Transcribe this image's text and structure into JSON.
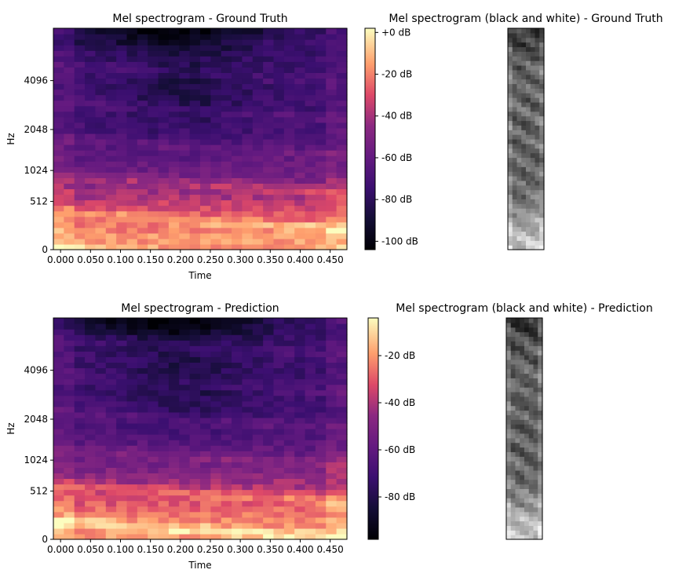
{
  "chart_data": [
    {
      "type": "heatmap",
      "title": "Mel spectrogram - Ground Truth",
      "xlabel": "Time",
      "ylabel": "Hz",
      "xlim": [
        -0.012,
        0.478
      ],
      "x_ticks": [
        "0.000",
        "0.050",
        "0.100",
        "0.150",
        "0.200",
        "0.250",
        "0.300",
        "0.350",
        "0.400",
        "0.450"
      ],
      "x_tick_values": [
        0,
        0.05,
        0.1,
        0.15,
        0.2,
        0.25,
        0.3,
        0.35,
        0.4,
        0.45
      ],
      "y_scale": "mel",
      "y_ticks": [
        "0",
        "512",
        "1024",
        "2048",
        "4096"
      ],
      "y_tick_values": [
        0,
        512,
        1024,
        2048,
        4096
      ],
      "ylim": [
        0,
        8000
      ],
      "colormap": "magma",
      "colorbar": {
        "label_values": [
          0,
          -20,
          -40,
          -60,
          -80,
          -100
        ],
        "labels": [
          "+0 dB",
          "-20 dB",
          "-40 dB",
          "-60 dB",
          "-80 dB",
          "-100 dB"
        ],
        "range": [
          -104,
          2
        ]
      }
    },
    {
      "type": "heatmap",
      "title": "Mel spectrogram (black and white) - Ground Truth",
      "colormap": "gray"
    },
    {
      "type": "heatmap",
      "title": "Mel spectrogram - Prediction",
      "xlabel": "Time",
      "ylabel": "Hz",
      "xlim": [
        -0.012,
        0.478
      ],
      "x_ticks": [
        "0.000",
        "0.050",
        "0.100",
        "0.150",
        "0.200",
        "0.250",
        "0.300",
        "0.350",
        "0.400",
        "0.450"
      ],
      "x_tick_values": [
        0,
        0.05,
        0.1,
        0.15,
        0.2,
        0.25,
        0.3,
        0.35,
        0.4,
        0.45
      ],
      "y_scale": "mel",
      "y_ticks": [
        "0",
        "512",
        "1024",
        "2048",
        "4096"
      ],
      "y_tick_values": [
        0,
        512,
        1024,
        2048,
        4096
      ],
      "ylim": [
        0,
        8000
      ],
      "colormap": "magma",
      "colorbar": {
        "label_values": [
          -20,
          -40,
          -60,
          -80
        ],
        "labels": [
          "-20 dB",
          "-40 dB",
          "-60 dB",
          "-80 dB"
        ],
        "range": [
          -98,
          -4
        ]
      }
    },
    {
      "type": "heatmap",
      "title": "Mel spectrogram (black and white) - Prediction",
      "colormap": "gray"
    }
  ]
}
